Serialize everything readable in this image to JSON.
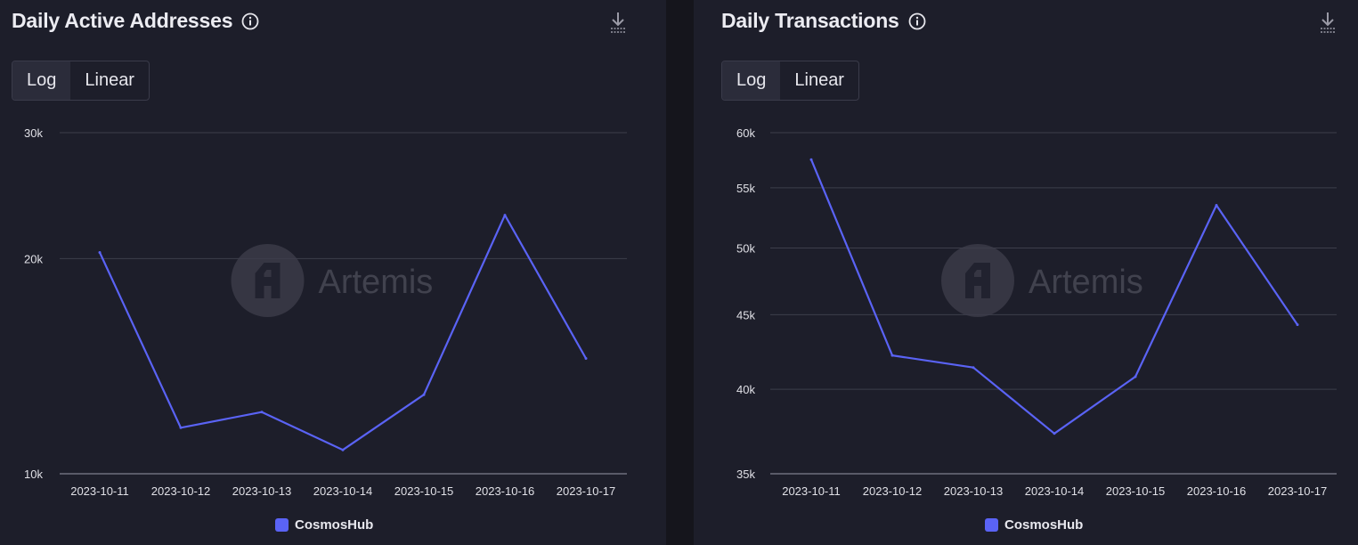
{
  "colors": {
    "series": "#5a63f5",
    "grid": "#3d3e4b",
    "axis_text": "#e0e0e6",
    "watermark": "#4a4b57"
  },
  "watermark": {
    "text": "Artemis",
    "icon": "artemis-logo-icon"
  },
  "icons": {
    "info": "info-circle-icon",
    "download": "download-icon"
  },
  "chart_data": [
    {
      "type": "line",
      "title": "Daily Active Addresses",
      "scale_options": [
        "Log",
        "Linear"
      ],
      "active_scale": "Log",
      "y_scale": "log",
      "ylim": [
        10000,
        30000
      ],
      "yticks": [
        10000,
        20000,
        30000
      ],
      "ytick_labels": [
        "10k",
        "20k",
        "30k"
      ],
      "x": [
        "2023-10-11",
        "2023-10-12",
        "2023-10-13",
        "2023-10-14",
        "2023-10-15",
        "2023-10-16",
        "2023-10-17"
      ],
      "series": [
        {
          "name": "CosmosHub",
          "values": [
            20400,
            11600,
            12200,
            10800,
            12900,
            23000,
            14500
          ]
        }
      ],
      "legend": "bottom",
      "grid": true
    },
    {
      "type": "line",
      "title": "Daily Transactions",
      "scale_options": [
        "Log",
        "Linear"
      ],
      "active_scale": "Log",
      "y_scale": "log",
      "ylim": [
        35000,
        60000
      ],
      "yticks": [
        35000,
        40000,
        45000,
        50000,
        55000,
        60000
      ],
      "ytick_labels": [
        "35k",
        "40k",
        "45k",
        "50k",
        "55k",
        "60k"
      ],
      "x": [
        "2023-10-11",
        "2023-10-12",
        "2023-10-13",
        "2023-10-14",
        "2023-10-15",
        "2023-10-16",
        "2023-10-17"
      ],
      "series": [
        {
          "name": "CosmosHub",
          "values": [
            57500,
            42200,
            41400,
            37300,
            40800,
            53500,
            44300
          ]
        }
      ],
      "legend": "bottom",
      "grid": true
    }
  ]
}
